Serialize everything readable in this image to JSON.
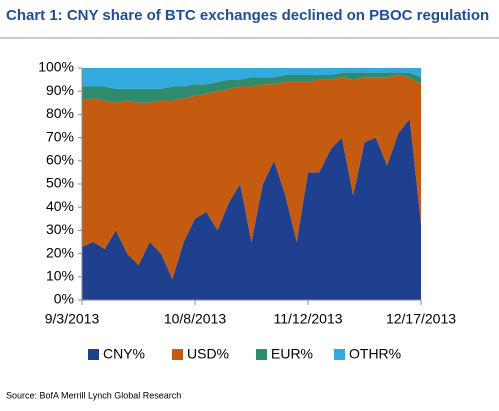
{
  "chart_data": {
    "type": "stacked-area",
    "title": "Chart 1: CNY share of BTC exchanges declined on PBOC regulation",
    "source": "Source: BofA Merrill Lynch Global Research",
    "categories": [
      "9/3/2013",
      null,
      null,
      null,
      null,
      null,
      null,
      null,
      null,
      null,
      "10/8/2013",
      null,
      null,
      null,
      null,
      null,
      null,
      null,
      null,
      null,
      "11/12/2013",
      null,
      null,
      null,
      null,
      null,
      null,
      null,
      null,
      null,
      "12/17/2013"
    ],
    "series": [
      {
        "name": "CNY%",
        "color": "#1f3f8f",
        "values": [
          23,
          25,
          22,
          30,
          20,
          15,
          25,
          20,
          9,
          25,
          35,
          38,
          30,
          42,
          50,
          25,
          50,
          60,
          45,
          25,
          55,
          55,
          65,
          70,
          45,
          68,
          70,
          58,
          72,
          78,
          33
        ]
      },
      {
        "name": "USD%",
        "color": "#c55a11",
        "values": [
          63,
          62,
          64,
          55,
          66,
          70,
          60,
          66,
          77,
          62,
          53,
          51,
          60,
          49,
          42,
          67,
          43,
          33,
          49,
          69,
          39,
          40,
          30,
          26,
          50,
          28,
          26,
          38,
          25,
          18,
          60
        ]
      },
      {
        "name": "EUR%",
        "color": "#2e8b6e",
        "values": [
          6,
          5,
          6,
          6,
          5,
          6,
          6,
          5,
          6,
          5,
          5,
          4,
          4,
          4,
          3,
          4,
          3,
          3,
          3,
          3,
          3,
          2,
          2,
          2,
          3,
          2,
          2,
          2,
          1,
          2,
          3
        ]
      },
      {
        "name": "OTHR%",
        "color": "#33aadd",
        "values": [
          8,
          8,
          8,
          9,
          9,
          9,
          9,
          9,
          8,
          8,
          7,
          7,
          6,
          5,
          5,
          4,
          4,
          4,
          3,
          3,
          3,
          3,
          3,
          2,
          2,
          2,
          2,
          2,
          2,
          2,
          4
        ]
      }
    ],
    "ylim": [
      0,
      100
    ],
    "yticks": [
      {
        "value": 0,
        "label": "0%"
      },
      {
        "value": 10,
        "label": "10%"
      },
      {
        "value": 20,
        "label": "20%"
      },
      {
        "value": 30,
        "label": "30%"
      },
      {
        "value": 40,
        "label": "40%"
      },
      {
        "value": 50,
        "label": "50%"
      },
      {
        "value": 60,
        "label": "60%"
      },
      {
        "value": 70,
        "label": "70%"
      },
      {
        "value": 80,
        "label": "80%"
      },
      {
        "value": 90,
        "label": "90%"
      },
      {
        "value": 100,
        "label": "100%"
      }
    ],
    "grid": false
  }
}
